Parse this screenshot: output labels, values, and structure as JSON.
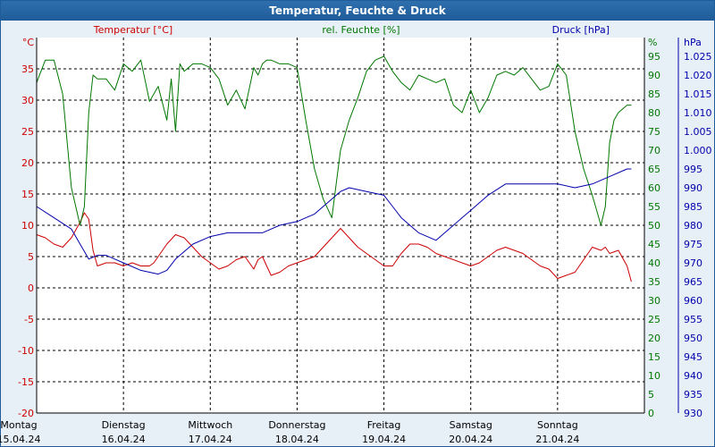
{
  "window": {
    "title": "Temperatur, Feuchte & Druck"
  },
  "chart_data": {
    "type": "line",
    "title": "Temperatur, Feuchte & Druck",
    "colors": {
      "temp": "#cc0000",
      "hum": "#007700",
      "press": "#0000aa",
      "grid": "#000000",
      "background": "#ffffff"
    },
    "axes": {
      "temp": {
        "label": "Temperatur [°C]",
        "unit": "°C",
        "min": -20,
        "max": 40,
        "ticks": [
          -20,
          -15,
          -10,
          -5,
          0,
          5,
          10,
          15,
          20,
          25,
          30,
          35
        ]
      },
      "hum": {
        "label": "rel. Feuchte [%]",
        "unit": "%",
        "min": 0,
        "max": 100,
        "ticks": [
          0,
          5,
          10,
          15,
          20,
          25,
          30,
          35,
          40,
          45,
          50,
          55,
          60,
          65,
          70,
          75,
          80,
          85,
          90,
          95
        ]
      },
      "press": {
        "label": "Druck [hPa]",
        "unit": "hPa",
        "min": 930,
        "max": 1030,
        "ticks": [
          "930",
          "935",
          "940",
          "945",
          "950",
          "955",
          "960",
          "965",
          "970",
          "975",
          "980",
          "985",
          "990",
          "995",
          "1.000",
          "1.005",
          "1.010",
          "1.015",
          "1.020",
          "1.025"
        ]
      }
    },
    "x_range": [
      0,
      7
    ],
    "days": [
      {
        "name": "Montag",
        "date": "15.04.24"
      },
      {
        "name": "Dienstag",
        "date": "16.04.24"
      },
      {
        "name": "Mittwoch",
        "date": "17.04.24"
      },
      {
        "name": "Donnerstag",
        "date": "18.04.24"
      },
      {
        "name": "Freitag",
        "date": "19.04.24"
      },
      {
        "name": "Samstag",
        "date": "20.04.24"
      },
      {
        "name": "Sonntag",
        "date": "21.04.24"
      }
    ],
    "series": [
      {
        "name": "Temperatur",
        "axis": "temp",
        "x": [
          0,
          0.1,
          0.2,
          0.3,
          0.4,
          0.5,
          0.55,
          0.6,
          0.65,
          0.7,
          0.8,
          0.9,
          1.0,
          1.1,
          1.2,
          1.3,
          1.35,
          1.4,
          1.5,
          1.6,
          1.7,
          1.8,
          1.9,
          2.0,
          2.1,
          2.2,
          2.3,
          2.4,
          2.5,
          2.55,
          2.6,
          2.65,
          2.7,
          2.8,
          2.9,
          3.0,
          3.1,
          3.2,
          3.3,
          3.4,
          3.5,
          3.6,
          3.7,
          3.8,
          3.9,
          4.0,
          4.1,
          4.2,
          4.3,
          4.4,
          4.5,
          4.6,
          4.7,
          4.8,
          4.9,
          5.0,
          5.1,
          5.2,
          5.3,
          5.4,
          5.5,
          5.6,
          5.7,
          5.8,
          5.9,
          6.0,
          6.1,
          6.2,
          6.3,
          6.4,
          6.5,
          6.55,
          6.6,
          6.7,
          6.8,
          6.85
        ],
        "values": [
          8.5,
          8,
          7,
          6.5,
          8,
          10.5,
          12,
          11,
          6,
          3.5,
          4,
          4,
          3.5,
          4,
          3.5,
          3.5,
          4,
          5,
          7,
          8.5,
          8,
          6.5,
          5,
          4,
          3,
          3.5,
          4.5,
          5,
          3,
          4.5,
          5,
          3.5,
          2,
          2.5,
          3.5,
          4,
          4.5,
          5,
          6.5,
          8,
          9.5,
          8,
          6.5,
          5.5,
          4.5,
          3.5,
          3.5,
          5.5,
          7,
          7,
          6.5,
          5.5,
          5,
          4.5,
          4,
          3.5,
          4,
          5,
          6,
          6.5,
          6,
          5.5,
          4.5,
          3.5,
          3,
          1.5,
          2,
          2.5,
          4.5,
          6.5,
          6,
          6.5,
          5.5,
          6,
          3.5,
          1
        ]
      },
      {
        "name": "rel. Feuchte",
        "axis": "hum",
        "x": [
          0,
          0.1,
          0.2,
          0.3,
          0.4,
          0.5,
          0.55,
          0.6,
          0.65,
          0.7,
          0.8,
          0.9,
          1.0,
          1.1,
          1.2,
          1.3,
          1.4,
          1.5,
          1.55,
          1.6,
          1.65,
          1.7,
          1.8,
          1.9,
          2.0,
          2.1,
          2.2,
          2.3,
          2.4,
          2.5,
          2.55,
          2.6,
          2.65,
          2.7,
          2.8,
          2.9,
          3.0,
          3.1,
          3.2,
          3.3,
          3.4,
          3.5,
          3.6,
          3.7,
          3.8,
          3.9,
          4.0,
          4.1,
          4.2,
          4.3,
          4.4,
          4.5,
          4.6,
          4.7,
          4.8,
          4.9,
          5.0,
          5.1,
          5.2,
          5.3,
          5.4,
          5.5,
          5.6,
          5.7,
          5.8,
          5.9,
          6.0,
          6.1,
          6.2,
          6.3,
          6.4,
          6.5,
          6.55,
          6.6,
          6.65,
          6.7,
          6.8,
          6.85
        ],
        "values": [
          88,
          94,
          94,
          85,
          60,
          50,
          55,
          80,
          90,
          89,
          89,
          86,
          93,
          91,
          94,
          83,
          87,
          78,
          89,
          75,
          93,
          91,
          93,
          93,
          92,
          89,
          82,
          86,
          81,
          92,
          90,
          93,
          94,
          94,
          93,
          93,
          92,
          78,
          65,
          57,
          52,
          70,
          78,
          84,
          91,
          94,
          95,
          91,
          88,
          86,
          90,
          89,
          88,
          89,
          82,
          80,
          86,
          80,
          84,
          90,
          91,
          90,
          92,
          89,
          86,
          87,
          93,
          90,
          75,
          65,
          58,
          50,
          55,
          72,
          78,
          80,
          82,
          82
        ]
      },
      {
        "name": "Druck",
        "axis": "press",
        "x": [
          0,
          0.2,
          0.4,
          0.5,
          0.6,
          0.7,
          0.8,
          0.9,
          1.0,
          1.2,
          1.4,
          1.5,
          1.6,
          1.8,
          2.0,
          2.2,
          2.4,
          2.6,
          2.8,
          3.0,
          3.2,
          3.4,
          3.5,
          3.6,
          3.8,
          4.0,
          4.1,
          4.2,
          4.4,
          4.6,
          4.8,
          5.0,
          5.2,
          5.4,
          5.6,
          5.8,
          6.0,
          6.2,
          6.4,
          6.6,
          6.8,
          6.85
        ],
        "values": [
          985,
          982,
          979,
          975,
          971,
          972,
          972,
          971,
          970,
          968,
          967,
          968,
          971,
          975,
          977,
          978,
          978,
          978,
          980,
          981,
          983,
          987,
          989,
          990,
          989,
          988,
          985,
          982,
          978,
          976,
          980,
          984,
          988,
          991,
          991,
          991,
          991,
          990,
          991,
          993,
          995,
          995
        ]
      }
    ]
  }
}
